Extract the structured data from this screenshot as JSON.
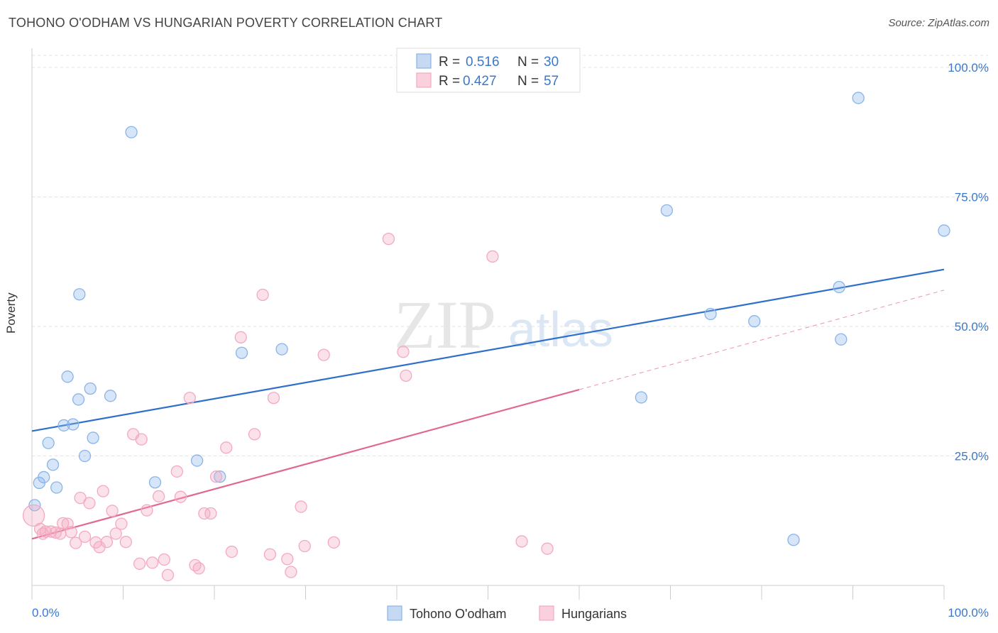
{
  "title": "TOHONO O'ODHAM VS HUNGARIAN POVERTY CORRELATION CHART",
  "source": "Source: ZipAtlas.com",
  "watermark": {
    "zip": "ZIP",
    "atlas": "atlas"
  },
  "chart_data": {
    "type": "scatter",
    "xlabel": "",
    "ylabel": "Poverty",
    "xlim": [
      0,
      100
    ],
    "ylim": [
      0,
      100
    ],
    "x_tick_labels": [
      "0.0%",
      "100.0%"
    ],
    "y_ticks": [
      25,
      50,
      75,
      100
    ],
    "y_tick_labels": [
      "25.0%",
      "50.0%",
      "75.0%",
      "100.0%"
    ],
    "grid": true,
    "legend_position": "bottom-center",
    "stats": [
      {
        "r_label": "R =",
        "r": "0.516",
        "n_label": "N =",
        "n": "30"
      },
      {
        "r_label": "R =",
        "r": "0.427",
        "n_label": "N =",
        "n": "57"
      }
    ],
    "series": [
      {
        "name": "Tohono O'odham",
        "color": "#8ab4e8",
        "line_color": "#2f6fcc",
        "trend": {
          "x0": 0,
          "y0": 29.8,
          "x1": 100,
          "y1": 61.0
        },
        "points": [
          [
            0.3,
            15.5
          ],
          [
            0.8,
            19.8
          ],
          [
            1.3,
            20.9
          ],
          [
            1.8,
            27.5
          ],
          [
            2.3,
            23.3
          ],
          [
            2.7,
            18.9
          ],
          [
            3.5,
            30.9
          ],
          [
            3.9,
            40.3
          ],
          [
            4.5,
            31.1
          ],
          [
            5.1,
            35.9
          ],
          [
            5.2,
            56.2
          ],
          [
            5.8,
            25.0
          ],
          [
            6.4,
            38.0
          ],
          [
            6.7,
            28.5
          ],
          [
            8.6,
            36.6
          ],
          [
            10.9,
            87.5
          ],
          [
            13.5,
            19.9
          ],
          [
            18.1,
            24.1
          ],
          [
            20.6,
            21.0
          ],
          [
            23.0,
            44.9
          ],
          [
            27.4,
            45.6
          ],
          [
            66.8,
            36.3
          ],
          [
            69.6,
            72.4
          ],
          [
            74.4,
            52.4
          ],
          [
            79.2,
            51.0
          ],
          [
            83.5,
            8.8
          ],
          [
            88.5,
            57.6
          ],
          [
            88.7,
            47.5
          ],
          [
            90.6,
            94.1
          ],
          [
            100.0,
            68.5
          ]
        ]
      },
      {
        "name": "Hungarians",
        "color": "#f4a9c0",
        "line_color": "#e06891",
        "trend": {
          "x0": 0,
          "y0": 9.0,
          "x1": 60,
          "y1": 37.8,
          "dash_to_x": 100,
          "dash_to_y": 57.0
        },
        "points": [
          [
            0.2,
            13.5
          ],
          [
            0.9,
            10.9
          ],
          [
            1.2,
            10.0
          ],
          [
            1.5,
            10.4
          ],
          [
            2.1,
            10.4
          ],
          [
            2.6,
            10.2
          ],
          [
            3.1,
            10.0
          ],
          [
            3.4,
            12.0
          ],
          [
            3.9,
            11.9
          ],
          [
            4.3,
            10.3
          ],
          [
            4.8,
            8.2
          ],
          [
            5.3,
            16.9
          ],
          [
            5.8,
            9.4
          ],
          [
            6.3,
            15.9
          ],
          [
            7.0,
            8.3
          ],
          [
            7.4,
            7.4
          ],
          [
            7.8,
            18.2
          ],
          [
            8.2,
            8.4
          ],
          [
            8.8,
            14.4
          ],
          [
            9.2,
            10.0
          ],
          [
            9.8,
            11.9
          ],
          [
            10.3,
            8.4
          ],
          [
            11.1,
            29.2
          ],
          [
            11.8,
            4.2
          ],
          [
            12.0,
            28.2
          ],
          [
            12.6,
            14.5
          ],
          [
            13.2,
            4.4
          ],
          [
            13.9,
            17.2
          ],
          [
            14.5,
            5.0
          ],
          [
            14.9,
            2.0
          ],
          [
            15.9,
            22.0
          ],
          [
            16.3,
            17.1
          ],
          [
            17.3,
            36.2
          ],
          [
            17.9,
            3.9
          ],
          [
            18.3,
            3.3
          ],
          [
            18.9,
            13.9
          ],
          [
            19.6,
            13.9
          ],
          [
            20.2,
            21.0
          ],
          [
            21.3,
            26.6
          ],
          [
            21.9,
            6.5
          ],
          [
            22.9,
            47.9
          ],
          [
            24.4,
            29.2
          ],
          [
            25.3,
            56.1
          ],
          [
            26.1,
            6.0
          ],
          [
            26.5,
            36.2
          ],
          [
            28.0,
            5.1
          ],
          [
            28.4,
            2.6
          ],
          [
            29.5,
            15.2
          ],
          [
            29.9,
            7.6
          ],
          [
            32.0,
            44.5
          ],
          [
            33.1,
            8.3
          ],
          [
            39.1,
            66.9
          ],
          [
            40.7,
            45.1
          ],
          [
            41.0,
            40.5
          ],
          [
            50.5,
            63.5
          ],
          [
            53.7,
            8.5
          ],
          [
            56.5,
            7.1
          ]
        ]
      }
    ]
  }
}
